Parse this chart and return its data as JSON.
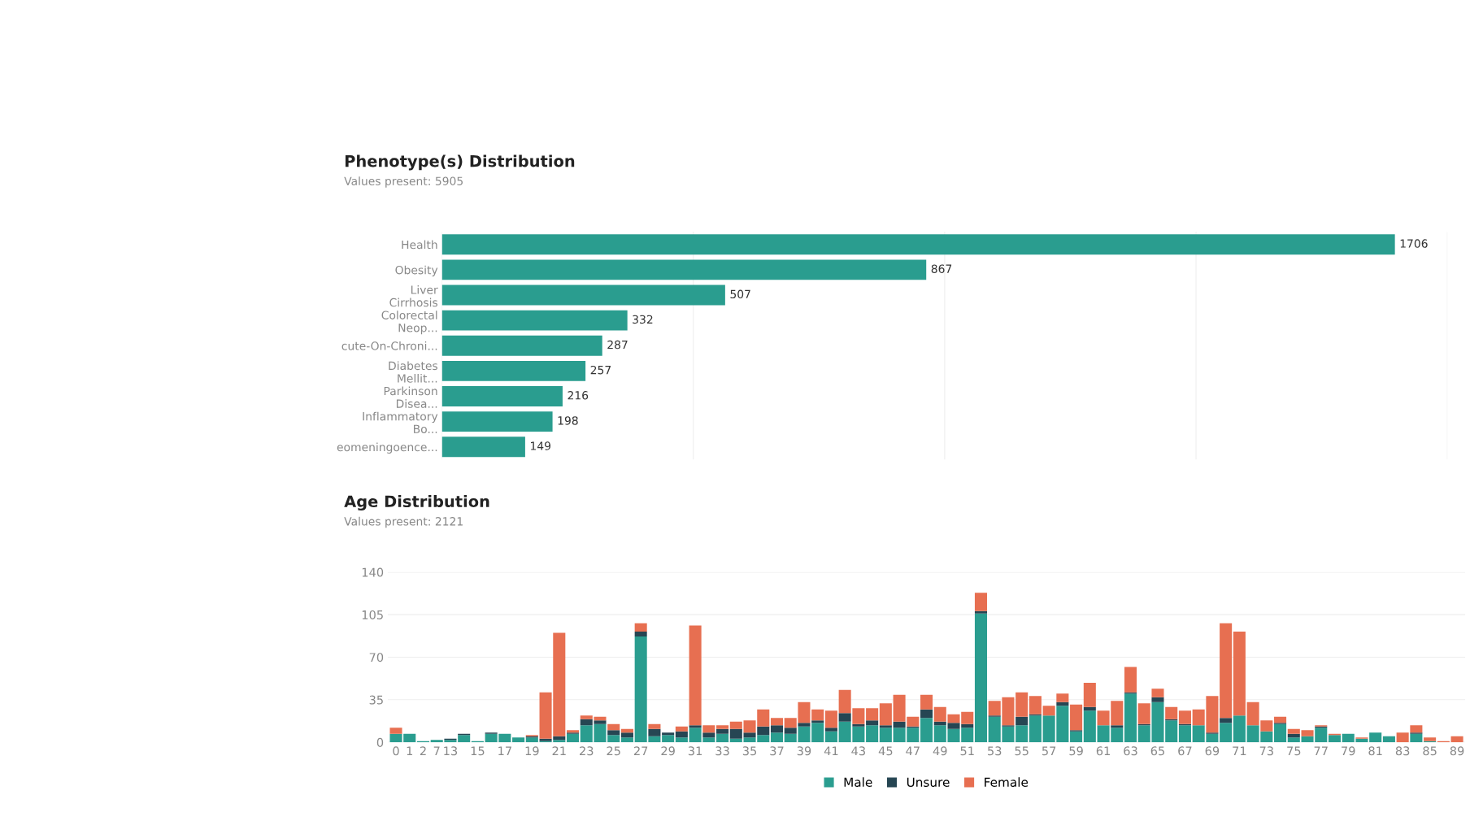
{
  "chart_data": [
    {
      "type": "bar",
      "orientation": "horizontal",
      "title": "Phenotype(s) Distribution",
      "subtitle": "Values present: 5905",
      "categories": [
        "Health",
        "Obesity",
        "Liver\nCirrhosis",
        "Colorectal\nNeop...",
        "cute-On-Chroni...",
        "Diabetes\nMellit...",
        "Parkinson\nDisea...",
        "Inflammatory\nBo...",
        "eomeningoence..."
      ],
      "values": [
        1706,
        867,
        507,
        332,
        287,
        257,
        216,
        198,
        149
      ],
      "color": "#2a9d8f",
      "data_labels": true,
      "xlim": [
        0,
        1800
      ],
      "xticks": [
        {
          "value": 0,
          "label": null
        },
        {
          "value": 450,
          "label": null
        },
        {
          "value": 900,
          "label": null
        },
        {
          "value": 1350,
          "label": null
        },
        {
          "value": 1800,
          "label": null
        }
      ],
      "grid": "x",
      "tick_labels": "y"
    },
    {
      "type": "bar",
      "stacked": true,
      "title": "Age Distribution",
      "subtitle": "Values present: 2121",
      "categories": [
        "0",
        "1",
        "2",
        "7",
        "13",
        null,
        "15",
        null,
        "17",
        null,
        "19",
        null,
        "21",
        null,
        "23",
        null,
        "25",
        null,
        "27",
        null,
        "29",
        null,
        "31",
        null,
        "33",
        null,
        "35",
        null,
        "37",
        null,
        "39",
        null,
        "41",
        null,
        "43",
        null,
        "45",
        null,
        "47",
        null,
        "49",
        null,
        "51",
        null,
        "53",
        null,
        "55",
        null,
        "57",
        null,
        "59",
        null,
        "61",
        null,
        "63",
        null,
        "65",
        null,
        "67",
        null,
        "69",
        null,
        "71",
        null,
        "73",
        null,
        "75",
        null,
        "77",
        null,
        "79",
        null,
        "81",
        null,
        "83",
        null,
        "85",
        null,
        "89"
      ],
      "series": [
        {
          "name": "Male",
          "color": "#2a9d8f",
          "values": [
            7,
            7,
            1,
            2,
            2,
            6,
            1,
            7,
            7,
            4,
            4,
            1,
            2,
            7,
            14,
            15,
            6,
            4,
            87,
            5,
            6,
            4,
            12,
            4,
            7,
            3,
            4,
            6,
            8,
            7,
            13,
            16,
            9,
            17,
            13,
            14,
            12,
            12,
            12,
            20,
            14,
            11,
            12,
            106,
            21,
            13,
            14,
            22,
            22,
            30,
            9,
            26,
            14,
            12,
            40,
            14,
            33,
            18,
            14,
            14,
            7,
            16,
            22,
            14,
            9,
            15,
            4,
            5,
            12,
            6,
            7,
            3,
            8,
            5,
            0,
            7,
            1,
            0,
            0
          ]
        },
        {
          "name": "Unsure",
          "color": "#264653",
          "values": [
            0,
            0,
            0,
            0,
            1,
            1,
            0,
            1,
            0,
            0,
            1,
            2,
            3,
            1,
            5,
            3,
            4,
            4,
            4,
            6,
            2,
            5,
            2,
            4,
            4,
            8,
            4,
            7,
            6,
            5,
            3,
            2,
            3,
            7,
            2,
            4,
            2,
            5,
            1,
            7,
            3,
            5,
            3,
            2,
            1,
            1,
            7,
            1,
            0,
            3,
            1,
            3,
            0,
            2,
            1,
            1,
            4,
            1,
            1,
            0,
            1,
            4,
            0,
            0,
            0,
            1,
            3,
            0,
            1,
            0,
            0,
            0,
            0,
            0,
            0,
            1,
            0,
            0,
            0
          ]
        },
        {
          "name": "Female",
          "color": "#e76f51",
          "values": [
            5,
            0,
            0,
            0,
            0,
            0,
            0,
            0,
            0,
            0,
            1,
            38,
            85,
            2,
            3,
            3,
            5,
            3,
            7,
            4,
            0,
            4,
            82,
            6,
            3,
            6,
            10,
            14,
            6,
            8,
            17,
            9,
            14,
            19,
            13,
            10,
            18,
            22,
            8,
            12,
            12,
            7,
            10,
            15,
            12,
            23,
            20,
            15,
            8,
            7,
            21,
            20,
            12,
            20,
            21,
            17,
            7,
            10,
            11,
            13,
            30,
            78,
            69,
            19,
            9,
            5,
            4,
            5,
            1,
            1,
            0,
            1,
            0,
            0,
            8,
            6,
            3,
            1,
            5
          ]
        }
      ],
      "ylim": [
        0,
        140
      ],
      "yticks": [
        0,
        35,
        70,
        105,
        140
      ],
      "grid": "y",
      "legend": "bottom"
    }
  ]
}
